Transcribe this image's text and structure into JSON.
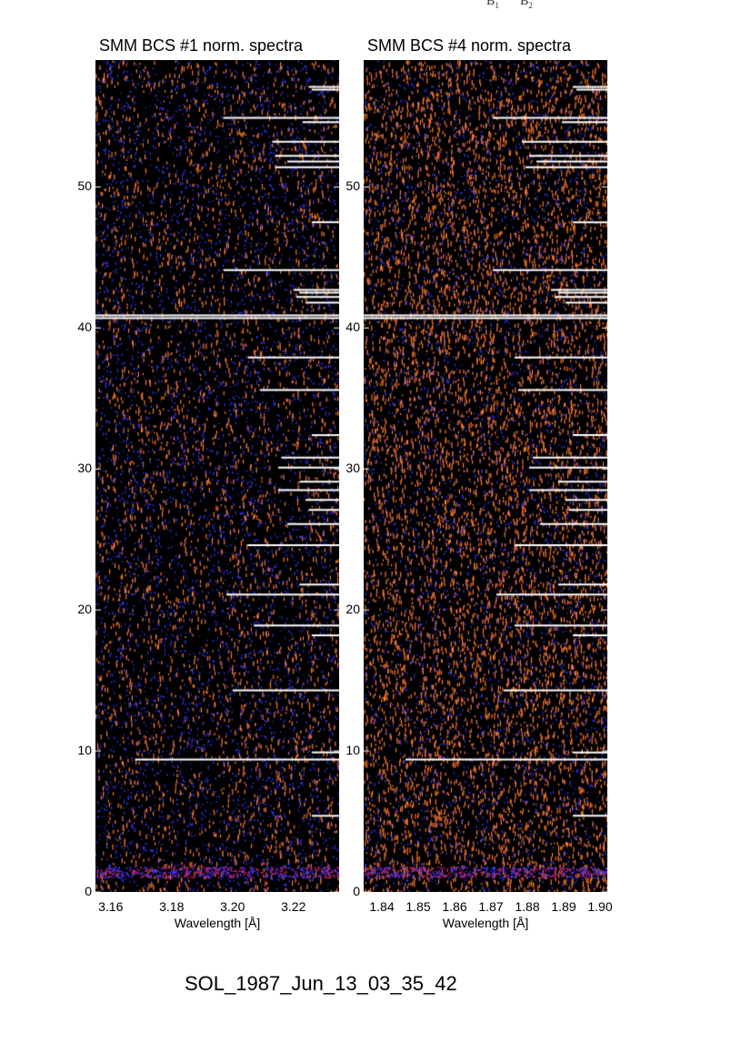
{
  "top_labels": {
    "b1_main": "B",
    "b1_sub": "1",
    "b2_main": "B",
    "b2_sub": "2"
  },
  "footer": {
    "title": "SOL_1987_Jun_13_03_35_42"
  },
  "colors": {
    "background": "#000000",
    "warm": "#ff7a30",
    "cool": "#3838ff",
    "lines": "#ffffff"
  },
  "chart_data": [
    {
      "type": "heatmap",
      "title": "SMM BCS #1 norm. spectra",
      "xlabel": "Wavelength [Å]",
      "ylabel": "",
      "xlim": [
        3.155,
        3.235
      ],
      "ylim": [
        0,
        59
      ],
      "xticks": [
        3.16,
        3.18,
        3.2,
        3.22
      ],
      "xtick_labels": [
        "3.16",
        "3.18",
        "3.20",
        "3.22"
      ],
      "yticks": [
        0,
        10,
        20,
        30,
        40,
        50
      ],
      "ytick_labels": [
        "0",
        "10",
        "20",
        "30",
        "40",
        "50"
      ],
      "grid": false,
      "colormap": "black-blue-orange",
      "white_rows": [
        {
          "y": 57.1,
          "x_start": 3.225
        },
        {
          "y": 56.9,
          "x_start": 3.226
        },
        {
          "y": 54.9,
          "x_start": 3.197
        },
        {
          "y": 54.6,
          "x_start": 3.223
        },
        {
          "y": 53.2,
          "x_start": 3.213
        },
        {
          "y": 52.2,
          "x_start": 3.214
        },
        {
          "y": 51.8,
          "x_start": 3.218
        },
        {
          "y": 51.4,
          "x_start": 3.214
        },
        {
          "y": 47.5,
          "x_start": 3.226
        },
        {
          "y": 44.1,
          "x_start": 3.197
        },
        {
          "y": 42.7,
          "x_start": 3.22
        },
        {
          "y": 42.5,
          "x_start": 3.222
        },
        {
          "y": 42.2,
          "x_start": 3.221
        },
        {
          "y": 41.8,
          "x_start": 3.224
        },
        {
          "y": 40.9,
          "x_start": 3.155
        },
        {
          "y": 40.7,
          "x_start": 3.155
        },
        {
          "y": 37.9,
          "x_start": 3.205
        },
        {
          "y": 35.6,
          "x_start": 3.209
        },
        {
          "y": 32.4,
          "x_start": 3.226
        },
        {
          "y": 30.8,
          "x_start": 3.216
        },
        {
          "y": 30.1,
          "x_start": 3.215
        },
        {
          "y": 29.1,
          "x_start": 3.222
        },
        {
          "y": 28.5,
          "x_start": 3.215
        },
        {
          "y": 27.8,
          "x_start": 3.224
        },
        {
          "y": 27.1,
          "x_start": 3.225
        },
        {
          "y": 26.1,
          "x_start": 3.218
        },
        {
          "y": 24.6,
          "x_start": 3.205
        },
        {
          "y": 21.8,
          "x_start": 3.222
        },
        {
          "y": 21.1,
          "x_start": 3.198
        },
        {
          "y": 18.9,
          "x_start": 3.207
        },
        {
          "y": 18.2,
          "x_start": 3.226
        },
        {
          "y": 14.3,
          "x_start": 3.2
        },
        {
          "y": 9.9,
          "x_start": 3.226
        },
        {
          "y": 9.4,
          "x_start": 3.168
        },
        {
          "y": 5.4,
          "x_start": 3.226
        }
      ]
    },
    {
      "type": "heatmap",
      "title": "SMM BCS #4 norm. spectra",
      "xlabel": "Wavelength [Å]",
      "ylabel": "",
      "xlim": [
        1.835,
        1.902
      ],
      "ylim": [
        0,
        59
      ],
      "xticks": [
        1.84,
        1.85,
        1.86,
        1.87,
        1.88,
        1.89,
        1.9
      ],
      "xtick_labels": [
        "1.84",
        "1.85",
        "1.86",
        "1.87",
        "1.88",
        "1.89",
        "1.90"
      ],
      "yticks": [
        0,
        10,
        20,
        30,
        40,
        50
      ],
      "ytick_labels": [
        "0",
        "10",
        "20",
        "30",
        "40",
        "50"
      ],
      "grid": false,
      "colormap": "black-blue-orange",
      "white_rows": [
        {
          "y": 57.1,
          "x_start": 1.8925
        },
        {
          "y": 56.9,
          "x_start": 1.8935
        },
        {
          "y": 54.9,
          "x_start": 1.8705
        },
        {
          "y": 54.6,
          "x_start": 1.8895
        },
        {
          "y": 53.2,
          "x_start": 1.8785
        },
        {
          "y": 52.2,
          "x_start": 1.8805
        },
        {
          "y": 51.8,
          "x_start": 1.8825
        },
        {
          "y": 51.4,
          "x_start": 1.8795
        },
        {
          "y": 47.5,
          "x_start": 1.8925
        },
        {
          "y": 44.1,
          "x_start": 1.8705
        },
        {
          "y": 42.7,
          "x_start": 1.8865
        },
        {
          "y": 42.5,
          "x_start": 1.8885
        },
        {
          "y": 42.2,
          "x_start": 1.8875
        },
        {
          "y": 41.8,
          "x_start": 1.8905
        },
        {
          "y": 40.9,
          "x_start": 1.835
        },
        {
          "y": 40.7,
          "x_start": 1.835
        },
        {
          "y": 37.9,
          "x_start": 1.8765
        },
        {
          "y": 35.6,
          "x_start": 1.8775
        },
        {
          "y": 32.4,
          "x_start": 1.8925
        },
        {
          "y": 30.8,
          "x_start": 1.8815
        },
        {
          "y": 30.1,
          "x_start": 1.8805
        },
        {
          "y": 29.1,
          "x_start": 1.8885
        },
        {
          "y": 28.5,
          "x_start": 1.8805
        },
        {
          "y": 27.8,
          "x_start": 1.8905
        },
        {
          "y": 27.1,
          "x_start": 1.8915
        },
        {
          "y": 26.1,
          "x_start": 1.8835
        },
        {
          "y": 24.6,
          "x_start": 1.8765
        },
        {
          "y": 21.8,
          "x_start": 1.8885
        },
        {
          "y": 21.1,
          "x_start": 1.8715
        },
        {
          "y": 18.9,
          "x_start": 1.8765
        },
        {
          "y": 18.2,
          "x_start": 1.8925
        },
        {
          "y": 14.3,
          "x_start": 1.8735
        },
        {
          "y": 9.9,
          "x_start": 1.8925
        },
        {
          "y": 9.4,
          "x_start": 1.8465
        },
        {
          "y": 5.4,
          "x_start": 1.8925
        }
      ]
    }
  ]
}
